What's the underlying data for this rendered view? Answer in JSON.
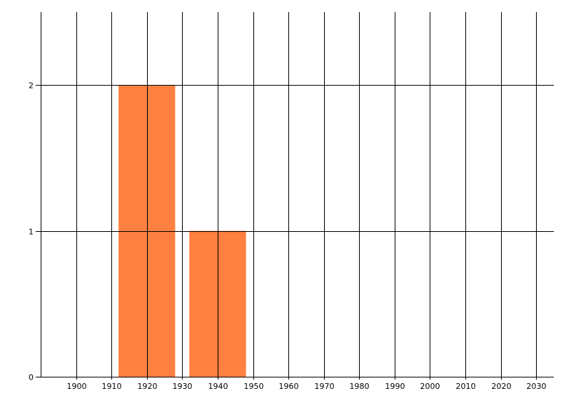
{
  "chart_data": {
    "type": "bar",
    "title": "",
    "xlabel": "",
    "ylabel": "",
    "xlim": [
      1890,
      2035
    ],
    "ylim": [
      0,
      2.5
    ],
    "x_ticks": [
      "1900",
      "1910",
      "1920",
      "1930",
      "1940",
      "1950",
      "1960",
      "1970",
      "1980",
      "1990",
      "2000",
      "2010",
      "2020",
      "2030"
    ],
    "y_ticks": [
      "0",
      "1",
      "2"
    ],
    "grid": true,
    "bars": [
      {
        "x_start": 1912,
        "x_end": 1928,
        "value": 2
      },
      {
        "x_start": 1932,
        "x_end": 1948,
        "value": 1
      }
    ],
    "bar_color": "#FF8040"
  }
}
